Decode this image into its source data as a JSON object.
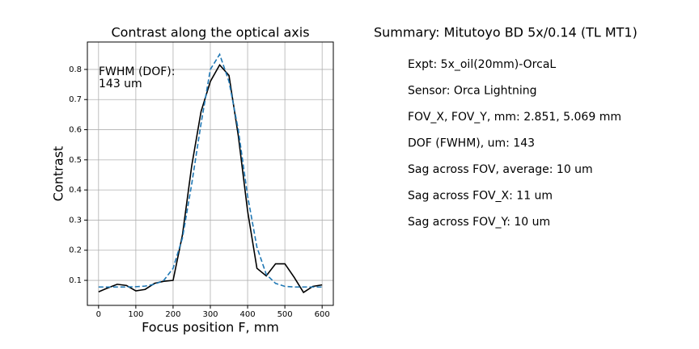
{
  "chart_data": {
    "type": "line",
    "title": "Contrast along the optical axis",
    "xlabel": "Focus position F, mm",
    "ylabel": "Contrast",
    "annotation": [
      "FWHM (DOF):",
      "143 um"
    ],
    "x": [
      0,
      25,
      50,
      75,
      100,
      125,
      150,
      175,
      200,
      225,
      250,
      275,
      300,
      325,
      350,
      375,
      400,
      425,
      450,
      475,
      500,
      525,
      550,
      575,
      600
    ],
    "series": [
      {
        "color": "#000000",
        "dashed": false,
        "values": [
          0.062,
          0.075,
          0.087,
          0.083,
          0.065,
          0.07,
          0.09,
          0.097,
          0.1,
          0.25,
          0.48,
          0.66,
          0.76,
          0.815,
          0.78,
          0.58,
          0.33,
          0.14,
          0.115,
          0.155,
          0.155,
          0.11,
          0.06,
          0.08,
          0.085
        ]
      },
      {
        "color": "#1f77b4",
        "dashed": true,
        "values": [
          0.078,
          0.078,
          0.078,
          0.078,
          0.079,
          0.081,
          0.087,
          0.1,
          0.14,
          0.24,
          0.42,
          0.62,
          0.8,
          0.85,
          0.76,
          0.6,
          0.38,
          0.21,
          0.12,
          0.09,
          0.08,
          0.078,
          0.078,
          0.078,
          0.078
        ]
      }
    ],
    "xlim": [
      -30,
      630
    ],
    "ylim": [
      0.017,
      0.891
    ],
    "xticks": [
      0,
      100,
      200,
      300,
      400,
      500,
      600
    ],
    "yticks": [
      0.1,
      0.2,
      0.3,
      0.4,
      0.5,
      0.6,
      0.7,
      0.8
    ],
    "grid": true
  },
  "summary": {
    "title": "Summary: Mitutoyo BD 5x/0.14 (TL MT1)",
    "lines": [
      "Expt: 5x_oil(20mm)-OrcaL",
      "Sensor: Orca Lightning",
      "FOV_X, FOV_Y, mm: 2.851, 5.069 mm",
      "DOF (FWHM), um: 143",
      "Sag across FOV, average: 10 um",
      "Sag across FOV_X: 11 um",
      "Sag across FOV_Y: 10 um"
    ]
  }
}
